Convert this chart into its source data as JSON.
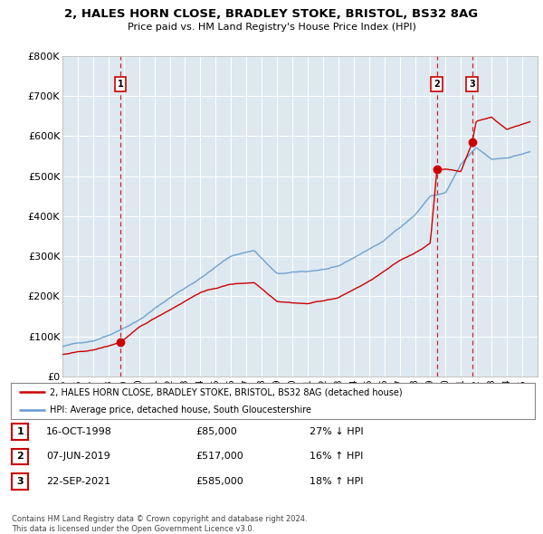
{
  "title": "2, HALES HORN CLOSE, BRADLEY STOKE, BRISTOL, BS32 8AG",
  "subtitle": "Price paid vs. HM Land Registry's House Price Index (HPI)",
  "property_color": "#cc0000",
  "hpi_color": "#6699cc",
  "sale_line_color": "#cc0000",
  "background_color": "#ffffff",
  "plot_bg_color": "#dde8f0",
  "grid_color": "#ffffff",
  "sales": [
    {
      "date": 1998.79,
      "price": 85000,
      "label": "1"
    },
    {
      "date": 2019.43,
      "price": 517000,
      "label": "2"
    },
    {
      "date": 2021.72,
      "price": 585000,
      "label": "3"
    }
  ],
  "table_rows": [
    {
      "num": "1",
      "date": "16-OCT-1998",
      "price": "£85,000",
      "hpi": "27% ↓ HPI"
    },
    {
      "num": "2",
      "date": "07-JUN-2019",
      "price": "£517,000",
      "hpi": "16% ↑ HPI"
    },
    {
      "num": "3",
      "date": "22-SEP-2021",
      "price": "£585,000",
      "hpi": "18% ↑ HPI"
    }
  ],
  "legend_property": "2, HALES HORN CLOSE, BRADLEY STOKE, BRISTOL, BS32 8AG (detached house)",
  "legend_hpi": "HPI: Average price, detached house, South Gloucestershire",
  "footer": "Contains HM Land Registry data © Crown copyright and database right 2024.\nThis data is licensed under the Open Government Licence v3.0.",
  "ylim": [
    0,
    800000
  ],
  "yticks": [
    0,
    100000,
    200000,
    300000,
    400000,
    500000,
    600000,
    700000,
    800000
  ],
  "ytick_labels": [
    "£0",
    "£100K",
    "£200K",
    "£300K",
    "£400K",
    "£500K",
    "£600K",
    "£700K",
    "£800K"
  ]
}
